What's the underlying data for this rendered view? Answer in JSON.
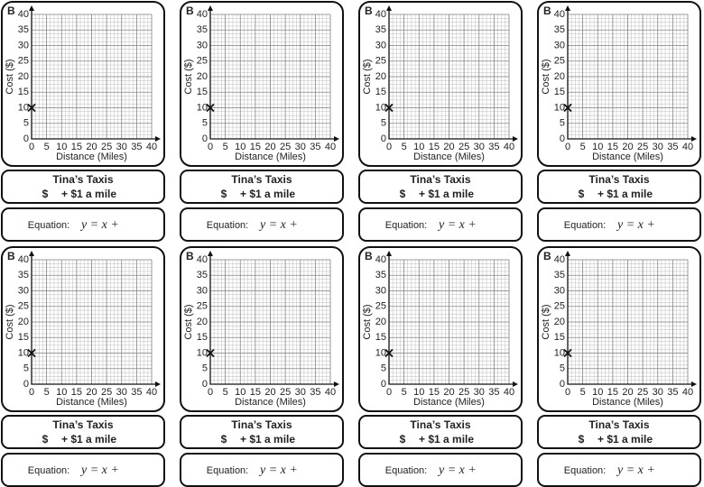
{
  "cards": [
    {
      "label": "B",
      "graph": {
        "xlabel": "Distance (Miles)",
        "ylabel": "Cost ($)",
        "xlim": [
          0,
          40
        ],
        "ylim": [
          0,
          40
        ],
        "xticks": [
          0,
          5,
          10,
          15,
          20,
          25,
          30,
          35,
          40
        ],
        "yticks": [
          0,
          5,
          10,
          15,
          20,
          25,
          30,
          35,
          40
        ],
        "minor_grid_step": 1.25,
        "point": {
          "x": 0,
          "y": 10
        }
      },
      "title": "Tina’s Taxis",
      "price_prefix": "$",
      "price_text": "+ $1 a mile",
      "equation_label": "Equation:",
      "equation": "y = x +"
    },
    {
      "label": "B",
      "graph": {
        "xlabel": "Distance (Miles)",
        "ylabel": "Cost ($)",
        "xlim": [
          0,
          40
        ],
        "ylim": [
          0,
          40
        ],
        "xticks": [
          0,
          5,
          10,
          15,
          20,
          25,
          30,
          35,
          40
        ],
        "yticks": [
          0,
          5,
          10,
          15,
          20,
          25,
          30,
          35,
          40
        ],
        "minor_grid_step": 1.25,
        "point": {
          "x": 0,
          "y": 10
        }
      },
      "title": "Tina’s Taxis",
      "price_prefix": "$",
      "price_text": "+ $1 a mile",
      "equation_label": "Equation:",
      "equation": "y = x +"
    },
    {
      "label": "B",
      "graph": {
        "xlabel": "Distance (Miles)",
        "ylabel": "Cost ($)",
        "xlim": [
          0,
          40
        ],
        "ylim": [
          0,
          40
        ],
        "xticks": [
          0,
          5,
          10,
          15,
          20,
          25,
          30,
          35,
          40
        ],
        "yticks": [
          0,
          5,
          10,
          15,
          20,
          25,
          30,
          35,
          40
        ],
        "minor_grid_step": 1.25,
        "point": {
          "x": 0,
          "y": 10
        }
      },
      "title": "Tina’s Taxis",
      "price_prefix": "$",
      "price_text": "+ $1 a mile",
      "equation_label": "Equation:",
      "equation": "y = x +"
    },
    {
      "label": "B",
      "graph": {
        "xlabel": "Distance (Miles)",
        "ylabel": "Cost ($)",
        "xlim": [
          0,
          40
        ],
        "ylim": [
          0,
          40
        ],
        "xticks": [
          0,
          5,
          10,
          15,
          20,
          25,
          30,
          35,
          40
        ],
        "yticks": [
          0,
          5,
          10,
          15,
          20,
          25,
          30,
          35,
          40
        ],
        "minor_grid_step": 1.25,
        "point": {
          "x": 0,
          "y": 10
        }
      },
      "title": "Tina’s Taxis",
      "price_prefix": "$",
      "price_text": "+ $1 a mile",
      "equation_label": "Equation:",
      "equation": "y = x +"
    },
    {
      "label": "B",
      "graph": {
        "xlabel": "Distance (Miles)",
        "ylabel": "Cost ($)",
        "xlim": [
          0,
          40
        ],
        "ylim": [
          0,
          40
        ],
        "xticks": [
          0,
          5,
          10,
          15,
          20,
          25,
          30,
          35,
          40
        ],
        "yticks": [
          0,
          5,
          10,
          15,
          20,
          25,
          30,
          35,
          40
        ],
        "minor_grid_step": 1.25,
        "point": {
          "x": 0,
          "y": 10
        }
      },
      "title": "Tina’s Taxis",
      "price_prefix": "$",
      "price_text": "+ $1 a mile",
      "equation_label": "Equation:",
      "equation": "y = x +"
    },
    {
      "label": "B",
      "graph": {
        "xlabel": "Distance (Miles)",
        "ylabel": "Cost ($)",
        "xlim": [
          0,
          40
        ],
        "ylim": [
          0,
          40
        ],
        "xticks": [
          0,
          5,
          10,
          15,
          20,
          25,
          30,
          35,
          40
        ],
        "yticks": [
          0,
          5,
          10,
          15,
          20,
          25,
          30,
          35,
          40
        ],
        "minor_grid_step": 1.25,
        "point": {
          "x": 0,
          "y": 10
        }
      },
      "title": "Tina’s Taxis",
      "price_prefix": "$",
      "price_text": "+ $1 a mile",
      "equation_label": "Equation:",
      "equation": "y = x +"
    },
    {
      "label": "B",
      "graph": {
        "xlabel": "Distance (Miles)",
        "ylabel": "Cost ($)",
        "xlim": [
          0,
          40
        ],
        "ylim": [
          0,
          40
        ],
        "xticks": [
          0,
          5,
          10,
          15,
          20,
          25,
          30,
          35,
          40
        ],
        "yticks": [
          0,
          5,
          10,
          15,
          20,
          25,
          30,
          35,
          40
        ],
        "minor_grid_step": 1.25,
        "point": {
          "x": 0,
          "y": 10
        }
      },
      "title": "Tina’s Taxis",
      "price_prefix": "$",
      "price_text": "+ $1 a mile",
      "equation_label": "Equation:",
      "equation": "y = x +"
    },
    {
      "label": "B",
      "graph": {
        "xlabel": "Distance (Miles)",
        "ylabel": "Cost ($)",
        "xlim": [
          0,
          40
        ],
        "ylim": [
          0,
          40
        ],
        "xticks": [
          0,
          5,
          10,
          15,
          20,
          25,
          30,
          35,
          40
        ],
        "yticks": [
          0,
          5,
          10,
          15,
          20,
          25,
          30,
          35,
          40
        ],
        "minor_grid_step": 1.25,
        "point": {
          "x": 0,
          "y": 10
        }
      },
      "title": "Tina’s Taxis",
      "price_prefix": "$",
      "price_text": "+ $1 a mile",
      "equation_label": "Equation:",
      "equation": "y = x +"
    }
  ]
}
